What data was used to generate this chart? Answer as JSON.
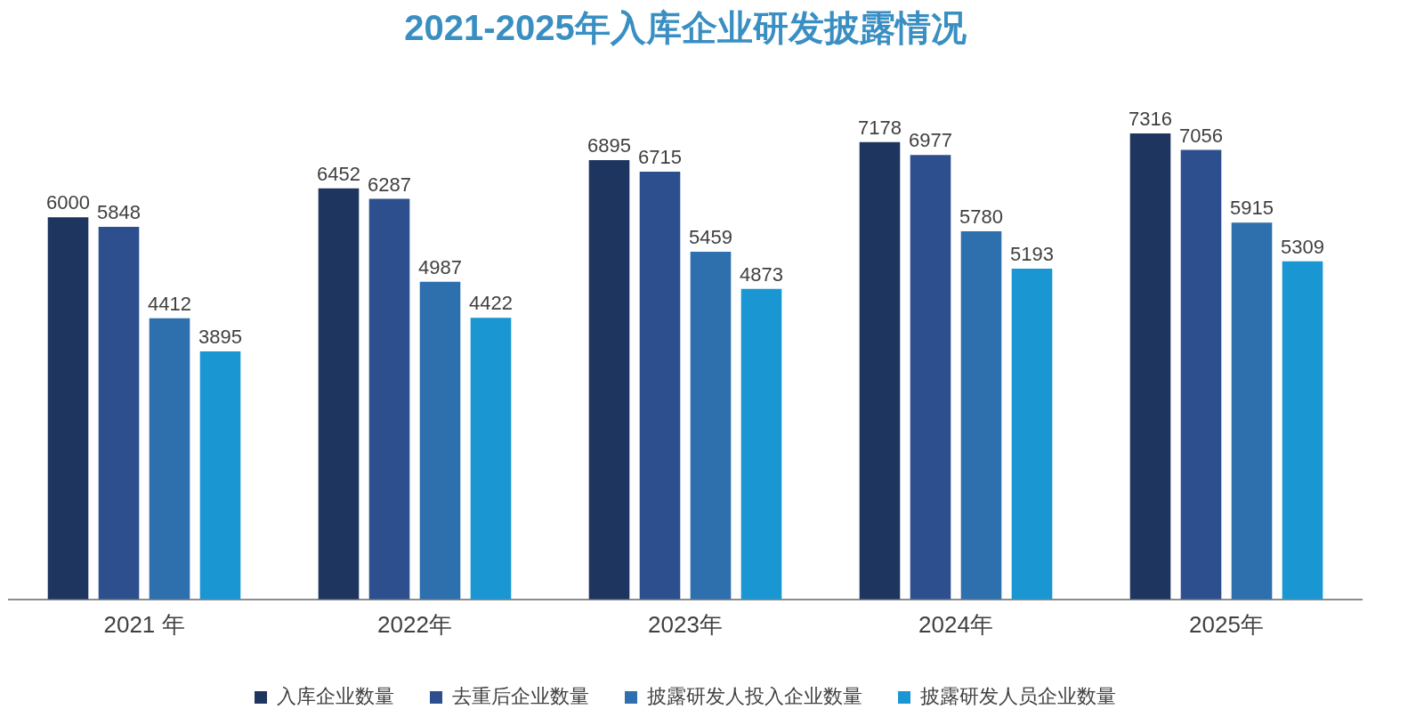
{
  "chart_data": {
    "type": "bar",
    "title": "2021-2025年入库企业研发披露情况",
    "categories": [
      "2021 年",
      "2022年",
      "2023年",
      "2024年",
      "2025年"
    ],
    "series": [
      {
        "name": "入库企业数量",
        "color": "#1e355f",
        "values": [
          6000,
          6452,
          6895,
          7178,
          7316
        ]
      },
      {
        "name": "去重后企业数量",
        "color": "#2d4f8e",
        "values": [
          5848,
          6287,
          6715,
          6977,
          7056
        ]
      },
      {
        "name": "披露研发人投入企业数量",
        "color": "#2e6fad",
        "values": [
          4412,
          4987,
          5459,
          5780,
          5915
        ]
      },
      {
        "name": "披露研发人员企业数量",
        "color": "#1a96d2",
        "values": [
          3895,
          4422,
          4873,
          5193,
          5309
        ]
      }
    ],
    "data_labels": true,
    "grid": false,
    "legend": "bottom"
  }
}
